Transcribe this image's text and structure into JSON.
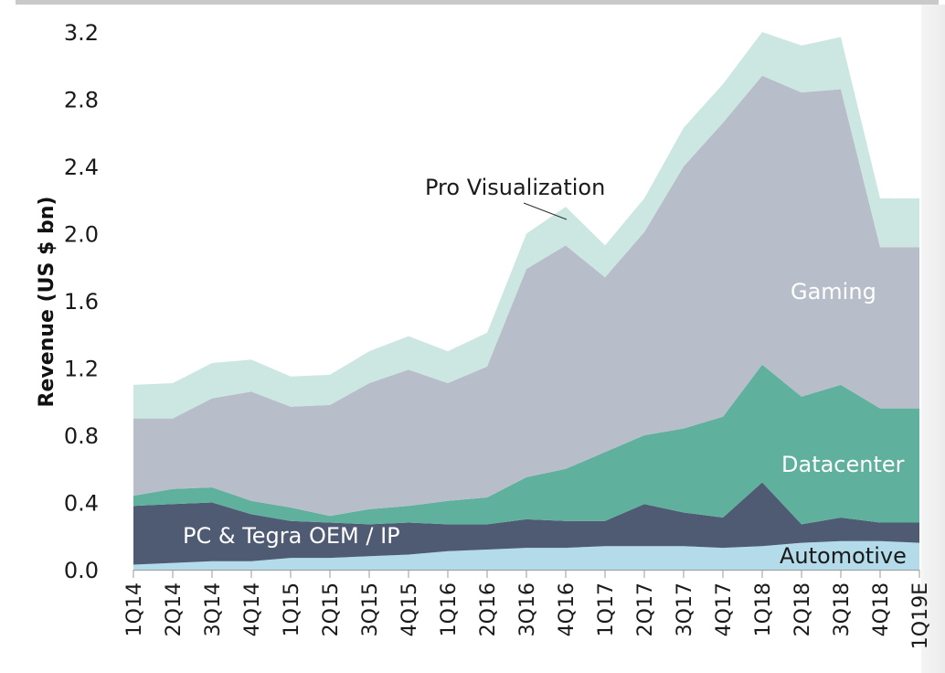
{
  "chart_data": {
    "type": "area",
    "stacked": true,
    "title": "",
    "xlabel": "",
    "ylabel": "Revenue (US $ bn)",
    "ylim": [
      0.0,
      3.2
    ],
    "yticks": [
      "0.0",
      "0.4",
      "0.8",
      "1.2",
      "1.6",
      "2.0",
      "2.4",
      "2.8",
      "3.2"
    ],
    "ytick_values": [
      0.0,
      0.4,
      0.8,
      1.2,
      1.6,
      2.0,
      2.4,
      2.8,
      3.2
    ],
    "grid": false,
    "categories": [
      "1Q14",
      "2Q14",
      "3Q14",
      "4Q14",
      "1Q15",
      "2Q15",
      "3Q15",
      "4Q15",
      "1Q16",
      "2Q16",
      "3Q16",
      "4Q16",
      "1Q17",
      "2Q17",
      "3Q17",
      "4Q17",
      "1Q18",
      "2Q18",
      "3Q18",
      "4Q18",
      "1Q19E"
    ],
    "series": [
      {
        "name": "Automotive",
        "color": "#b3dbea",
        "label_color": "#1a1a1a",
        "values": [
          0.03,
          0.04,
          0.05,
          0.05,
          0.07,
          0.07,
          0.08,
          0.09,
          0.11,
          0.12,
          0.13,
          0.13,
          0.14,
          0.14,
          0.14,
          0.13,
          0.14,
          0.16,
          0.17,
          0.17,
          0.16
        ]
      },
      {
        "name": "PC & Tegra OEM / IP",
        "color": "#4f5b72",
        "label_color": "#ffffff",
        "values": [
          0.35,
          0.35,
          0.35,
          0.28,
          0.22,
          0.21,
          0.19,
          0.19,
          0.16,
          0.15,
          0.17,
          0.16,
          0.15,
          0.25,
          0.2,
          0.18,
          0.38,
          0.11,
          0.14,
          0.11,
          0.12
        ]
      },
      {
        "name": "Datacenter",
        "color": "#5fb09d",
        "label_color": "#ffffff",
        "values": [
          0.06,
          0.09,
          0.09,
          0.08,
          0.08,
          0.04,
          0.09,
          0.1,
          0.14,
          0.16,
          0.25,
          0.31,
          0.41,
          0.41,
          0.5,
          0.6,
          0.7,
          0.76,
          0.79,
          0.68,
          0.68
        ]
      },
      {
        "name": "Gaming",
        "color": "#b8bec9",
        "label_color": "#ffffff",
        "values": [
          0.46,
          0.42,
          0.53,
          0.65,
          0.6,
          0.66,
          0.75,
          0.81,
          0.7,
          0.78,
          1.24,
          1.33,
          1.04,
          1.21,
          1.56,
          1.75,
          1.72,
          1.81,
          1.76,
          0.96,
          0.96
        ]
      },
      {
        "name": "Pro Visualization",
        "color": "#cce7e2",
        "label_color": "#1a1a1a",
        "values": [
          0.2,
          0.21,
          0.21,
          0.19,
          0.18,
          0.18,
          0.19,
          0.2,
          0.19,
          0.2,
          0.21,
          0.23,
          0.19,
          0.2,
          0.23,
          0.23,
          0.26,
          0.28,
          0.31,
          0.29,
          0.29
        ]
      }
    ],
    "annotations": [
      "Pro Visualization",
      "Gaming",
      "Datacenter",
      "PC & Tegra OEM / IP",
      "Automotive"
    ],
    "legend": "inline-labels"
  }
}
